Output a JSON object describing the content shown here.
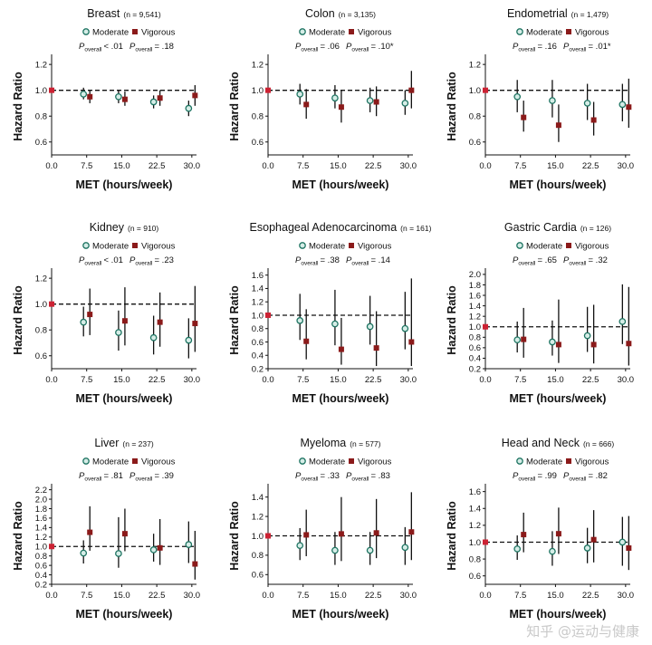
{
  "x_ticks": [
    "0.0",
    "7.5",
    "15.0",
    "22.5",
    "30.0"
  ],
  "legend": {
    "moderate": "Moderate",
    "vigorous": "Vigorous"
  },
  "p_label": {
    "main": "P",
    "sub": "overall"
  },
  "colors": {
    "moderate_fill": "#d6ede7",
    "moderate_edge": "#1e7462",
    "vigorous": "#8b1a1a",
    "reference": "#cc2233",
    "line": "#111111"
  },
  "watermark": "知乎 @运动与健康",
  "chart_data": [
    {
      "type": "scatter",
      "title": "Breast",
      "n": "(n = 9,541)",
      "xlabel": "MET (hours/week)",
      "ylabel": "Hazard Ratio",
      "p_moderate": "< .01",
      "p_vigorous": "= .18",
      "x": [
        7.5,
        15.0,
        22.5,
        30.0
      ],
      "ylim": [
        0.5,
        1.25
      ],
      "yticks": [
        "0.6",
        "0.8",
        "1.0",
        "1.2"
      ],
      "reference": {
        "x": 0,
        "y": 1.0
      },
      "series": [
        {
          "name": "Moderate",
          "values": [
            0.97,
            0.95,
            0.91,
            0.86
          ],
          "lower": [
            0.93,
            0.9,
            0.86,
            0.8
          ],
          "upper": [
            1.02,
            1.0,
            0.96,
            0.92
          ]
        },
        {
          "name": "Vigorous",
          "values": [
            0.95,
            0.93,
            0.94,
            0.96
          ],
          "lower": [
            0.9,
            0.88,
            0.88,
            0.88
          ],
          "upper": [
            1.0,
            0.99,
            1.0,
            1.04
          ]
        }
      ]
    },
    {
      "type": "scatter",
      "title": "Colon",
      "n": "(n = 3,135)",
      "xlabel": "MET (hours/week)",
      "ylabel": "Hazard Ratio",
      "p_moderate": "= .06",
      "p_vigorous": "= .10*",
      "x": [
        7.5,
        15.0,
        22.5,
        30.0
      ],
      "ylim": [
        0.5,
        1.25
      ],
      "yticks": [
        "0.6",
        "0.8",
        "1.0",
        "1.2"
      ],
      "reference": {
        "x": 0,
        "y": 1.0
      },
      "series": [
        {
          "name": "Moderate",
          "values": [
            0.97,
            0.94,
            0.92,
            0.9
          ],
          "lower": [
            0.89,
            0.86,
            0.83,
            0.81
          ],
          "upper": [
            1.05,
            1.04,
            1.02,
            1.0
          ]
        },
        {
          "name": "Vigorous",
          "values": [
            0.89,
            0.87,
            0.91,
            1.0
          ],
          "lower": [
            0.78,
            0.75,
            0.8,
            0.86
          ],
          "upper": [
            1.01,
            1.0,
            1.03,
            1.15
          ]
        }
      ]
    },
    {
      "type": "scatter",
      "title": "Endometrial",
      "n": "(n = 1,479)",
      "xlabel": "MET (hours/week)",
      "ylabel": "Hazard Ratio",
      "p_moderate": "= .16",
      "p_vigorous": "= .01*",
      "x": [
        7.5,
        15.0,
        22.5,
        30.0
      ],
      "ylim": [
        0.5,
        1.25
      ],
      "yticks": [
        "0.6",
        "0.8",
        "1.0",
        "1.2"
      ],
      "reference": {
        "x": 0,
        "y": 1.0
      },
      "series": [
        {
          "name": "Moderate",
          "values": [
            0.95,
            0.92,
            0.9,
            0.89
          ],
          "lower": [
            0.83,
            0.79,
            0.77,
            0.76
          ],
          "upper": [
            1.08,
            1.08,
            1.05,
            1.05
          ]
        },
        {
          "name": "Vigorous",
          "values": [
            0.79,
            0.73,
            0.77,
            0.87
          ],
          "lower": [
            0.68,
            0.6,
            0.65,
            0.71
          ],
          "upper": [
            0.92,
            0.89,
            0.91,
            1.09
          ]
        }
      ]
    },
    {
      "type": "scatter",
      "title": "Kidney",
      "n": "(n = 910)",
      "xlabel": "MET (hours/week)",
      "ylabel": "Hazard Ratio",
      "p_moderate": "< .01",
      "p_vigorous": "= .23",
      "x": [
        7.5,
        15.0,
        22.5,
        30.0
      ],
      "ylim": [
        0.5,
        1.25
      ],
      "yticks": [
        "0.6",
        "0.8",
        "1.0",
        "1.2"
      ],
      "reference": {
        "x": 0,
        "y": 1.0
      },
      "series": [
        {
          "name": "Moderate",
          "values": [
            0.86,
            0.78,
            0.74,
            0.72
          ],
          "lower": [
            0.75,
            0.64,
            0.61,
            0.58
          ],
          "upper": [
            0.98,
            0.95,
            0.91,
            0.89
          ]
        },
        {
          "name": "Vigorous",
          "values": [
            0.92,
            0.87,
            0.86,
            0.85
          ],
          "lower": [
            0.76,
            0.68,
            0.67,
            0.63
          ],
          "upper": [
            1.12,
            1.13,
            1.09,
            1.14
          ]
        }
      ]
    },
    {
      "type": "scatter",
      "title": "Esophageal Adenocarcinoma",
      "n": "(n = 161)",
      "xlabel": "MET (hours/week)",
      "ylabel": "Hazard Ratio",
      "p_moderate": "= .38",
      "p_vigorous": "= .14",
      "x": [
        7.5,
        15.0,
        22.5,
        30.0
      ],
      "ylim": [
        0.2,
        1.65
      ],
      "yticks": [
        "0.2",
        "0.4",
        "0.6",
        "0.8",
        "1.0",
        "1.2",
        "1.4",
        "1.6"
      ],
      "reference": {
        "x": 0,
        "y": 1.0
      },
      "series": [
        {
          "name": "Moderate",
          "values": [
            0.92,
            0.87,
            0.83,
            0.8
          ],
          "lower": [
            0.63,
            0.55,
            0.56,
            0.49
          ],
          "upper": [
            1.32,
            1.38,
            1.29,
            1.35
          ]
        },
        {
          "name": "Vigorous",
          "values": [
            0.61,
            0.49,
            0.51,
            0.6
          ],
          "lower": [
            0.34,
            0.26,
            0.24,
            0.24
          ],
          "upper": [
            1.09,
            0.96,
            1.06,
            1.55
          ]
        }
      ]
    },
    {
      "type": "scatter",
      "title": "Gastric Cardia",
      "n": "(n = 126)",
      "xlabel": "MET (hours/week)",
      "ylabel": "Hazard Ratio",
      "p_moderate": "= .65",
      "p_vigorous": "= .32",
      "x": [
        7.5,
        15.0,
        22.5,
        30.0
      ],
      "ylim": [
        0.2,
        2.05
      ],
      "yticks": [
        "0.2",
        "0.4",
        "0.6",
        "0.8",
        "1.0",
        "1.2",
        "1.4",
        "1.6",
        "1.8",
        "2.0"
      ],
      "reference": {
        "x": 0,
        "y": 1.0
      },
      "series": [
        {
          "name": "Moderate",
          "values": [
            0.75,
            0.71,
            0.83,
            1.1
          ],
          "lower": [
            0.51,
            0.45,
            0.52,
            0.67
          ],
          "upper": [
            1.1,
            1.12,
            1.38,
            1.81
          ]
        },
        {
          "name": "Vigorous",
          "values": [
            0.76,
            0.66,
            0.66,
            0.68
          ],
          "lower": [
            0.41,
            0.31,
            0.3,
            0.26
          ],
          "upper": [
            1.36,
            1.52,
            1.42,
            1.76
          ]
        }
      ]
    },
    {
      "type": "scatter",
      "title": "Liver",
      "n": "(n = 237)",
      "xlabel": "MET (hours/week)",
      "ylabel": "Hazard Ratio",
      "p_moderate": "= .81",
      "p_vigorous": "= .39",
      "x": [
        7.5,
        15.0,
        22.5,
        30.0
      ],
      "ylim": [
        0.2,
        2.25
      ],
      "yticks": [
        "0.2",
        "0.4",
        "0.6",
        "0.8",
        "1.0",
        "1.2",
        "1.4",
        "1.6",
        "1.8",
        "2.0",
        "2.2"
      ],
      "reference": {
        "x": 0,
        "y": 1.0
      },
      "series": [
        {
          "name": "Moderate",
          "values": [
            0.86,
            0.85,
            0.93,
            1.04
          ],
          "lower": [
            0.64,
            0.55,
            0.68,
            0.65
          ],
          "upper": [
            1.13,
            1.62,
            1.27,
            1.53
          ]
        },
        {
          "name": "Vigorous",
          "values": [
            1.3,
            1.27,
            0.97,
            0.63
          ],
          "lower": [
            0.91,
            0.9,
            0.61,
            0.3
          ],
          "upper": [
            1.85,
            1.8,
            1.58,
            1.33
          ]
        }
      ]
    },
    {
      "type": "scatter",
      "title": "Myeloma",
      "n": "(n = 577)",
      "xlabel": "MET (hours/week)",
      "ylabel": "Hazard Ratio",
      "p_moderate": "= .33",
      "p_vigorous": "= .83",
      "x": [
        7.5,
        15.0,
        22.5,
        30.0
      ],
      "ylim": [
        0.5,
        1.5
      ],
      "yticks": [
        "0.6",
        "0.8",
        "1.0",
        "1.2",
        "1.4"
      ],
      "reference": {
        "x": 0,
        "y": 1.0
      },
      "series": [
        {
          "name": "Moderate",
          "values": [
            0.9,
            0.85,
            0.85,
            0.88
          ],
          "lower": [
            0.75,
            0.7,
            0.7,
            0.7
          ],
          "upper": [
            1.08,
            1.04,
            1.04,
            1.09
          ]
        },
        {
          "name": "Vigorous",
          "values": [
            1.01,
            1.02,
            1.03,
            1.04
          ],
          "lower": [
            0.79,
            0.74,
            0.77,
            0.75
          ],
          "upper": [
            1.27,
            1.4,
            1.38,
            1.45
          ]
        }
      ]
    },
    {
      "type": "scatter",
      "title": "Head and Neck",
      "n": "(n = 666)",
      "xlabel": "MET (hours/week)",
      "ylabel": "Hazard Ratio",
      "p_moderate": "= .99",
      "p_vigorous": "= .82",
      "x": [
        7.5,
        15.0,
        22.5,
        30.0
      ],
      "ylim": [
        0.5,
        1.65
      ],
      "yticks": [
        "0.6",
        "0.8",
        "1.0",
        "1.2",
        "1.4",
        "1.6"
      ],
      "reference": {
        "x": 0,
        "y": 1.0
      },
      "series": [
        {
          "name": "Moderate",
          "values": [
            0.92,
            0.89,
            0.93,
            1.0
          ],
          "lower": [
            0.79,
            0.72,
            0.75,
            0.72
          ],
          "upper": [
            1.08,
            1.13,
            1.17,
            1.3
          ]
        },
        {
          "name": "Vigorous",
          "values": [
            1.09,
            1.1,
            1.03,
            0.93
          ],
          "lower": [
            0.88,
            0.86,
            0.76,
            0.67
          ],
          "upper": [
            1.35,
            1.41,
            1.38,
            1.31
          ]
        }
      ]
    }
  ]
}
